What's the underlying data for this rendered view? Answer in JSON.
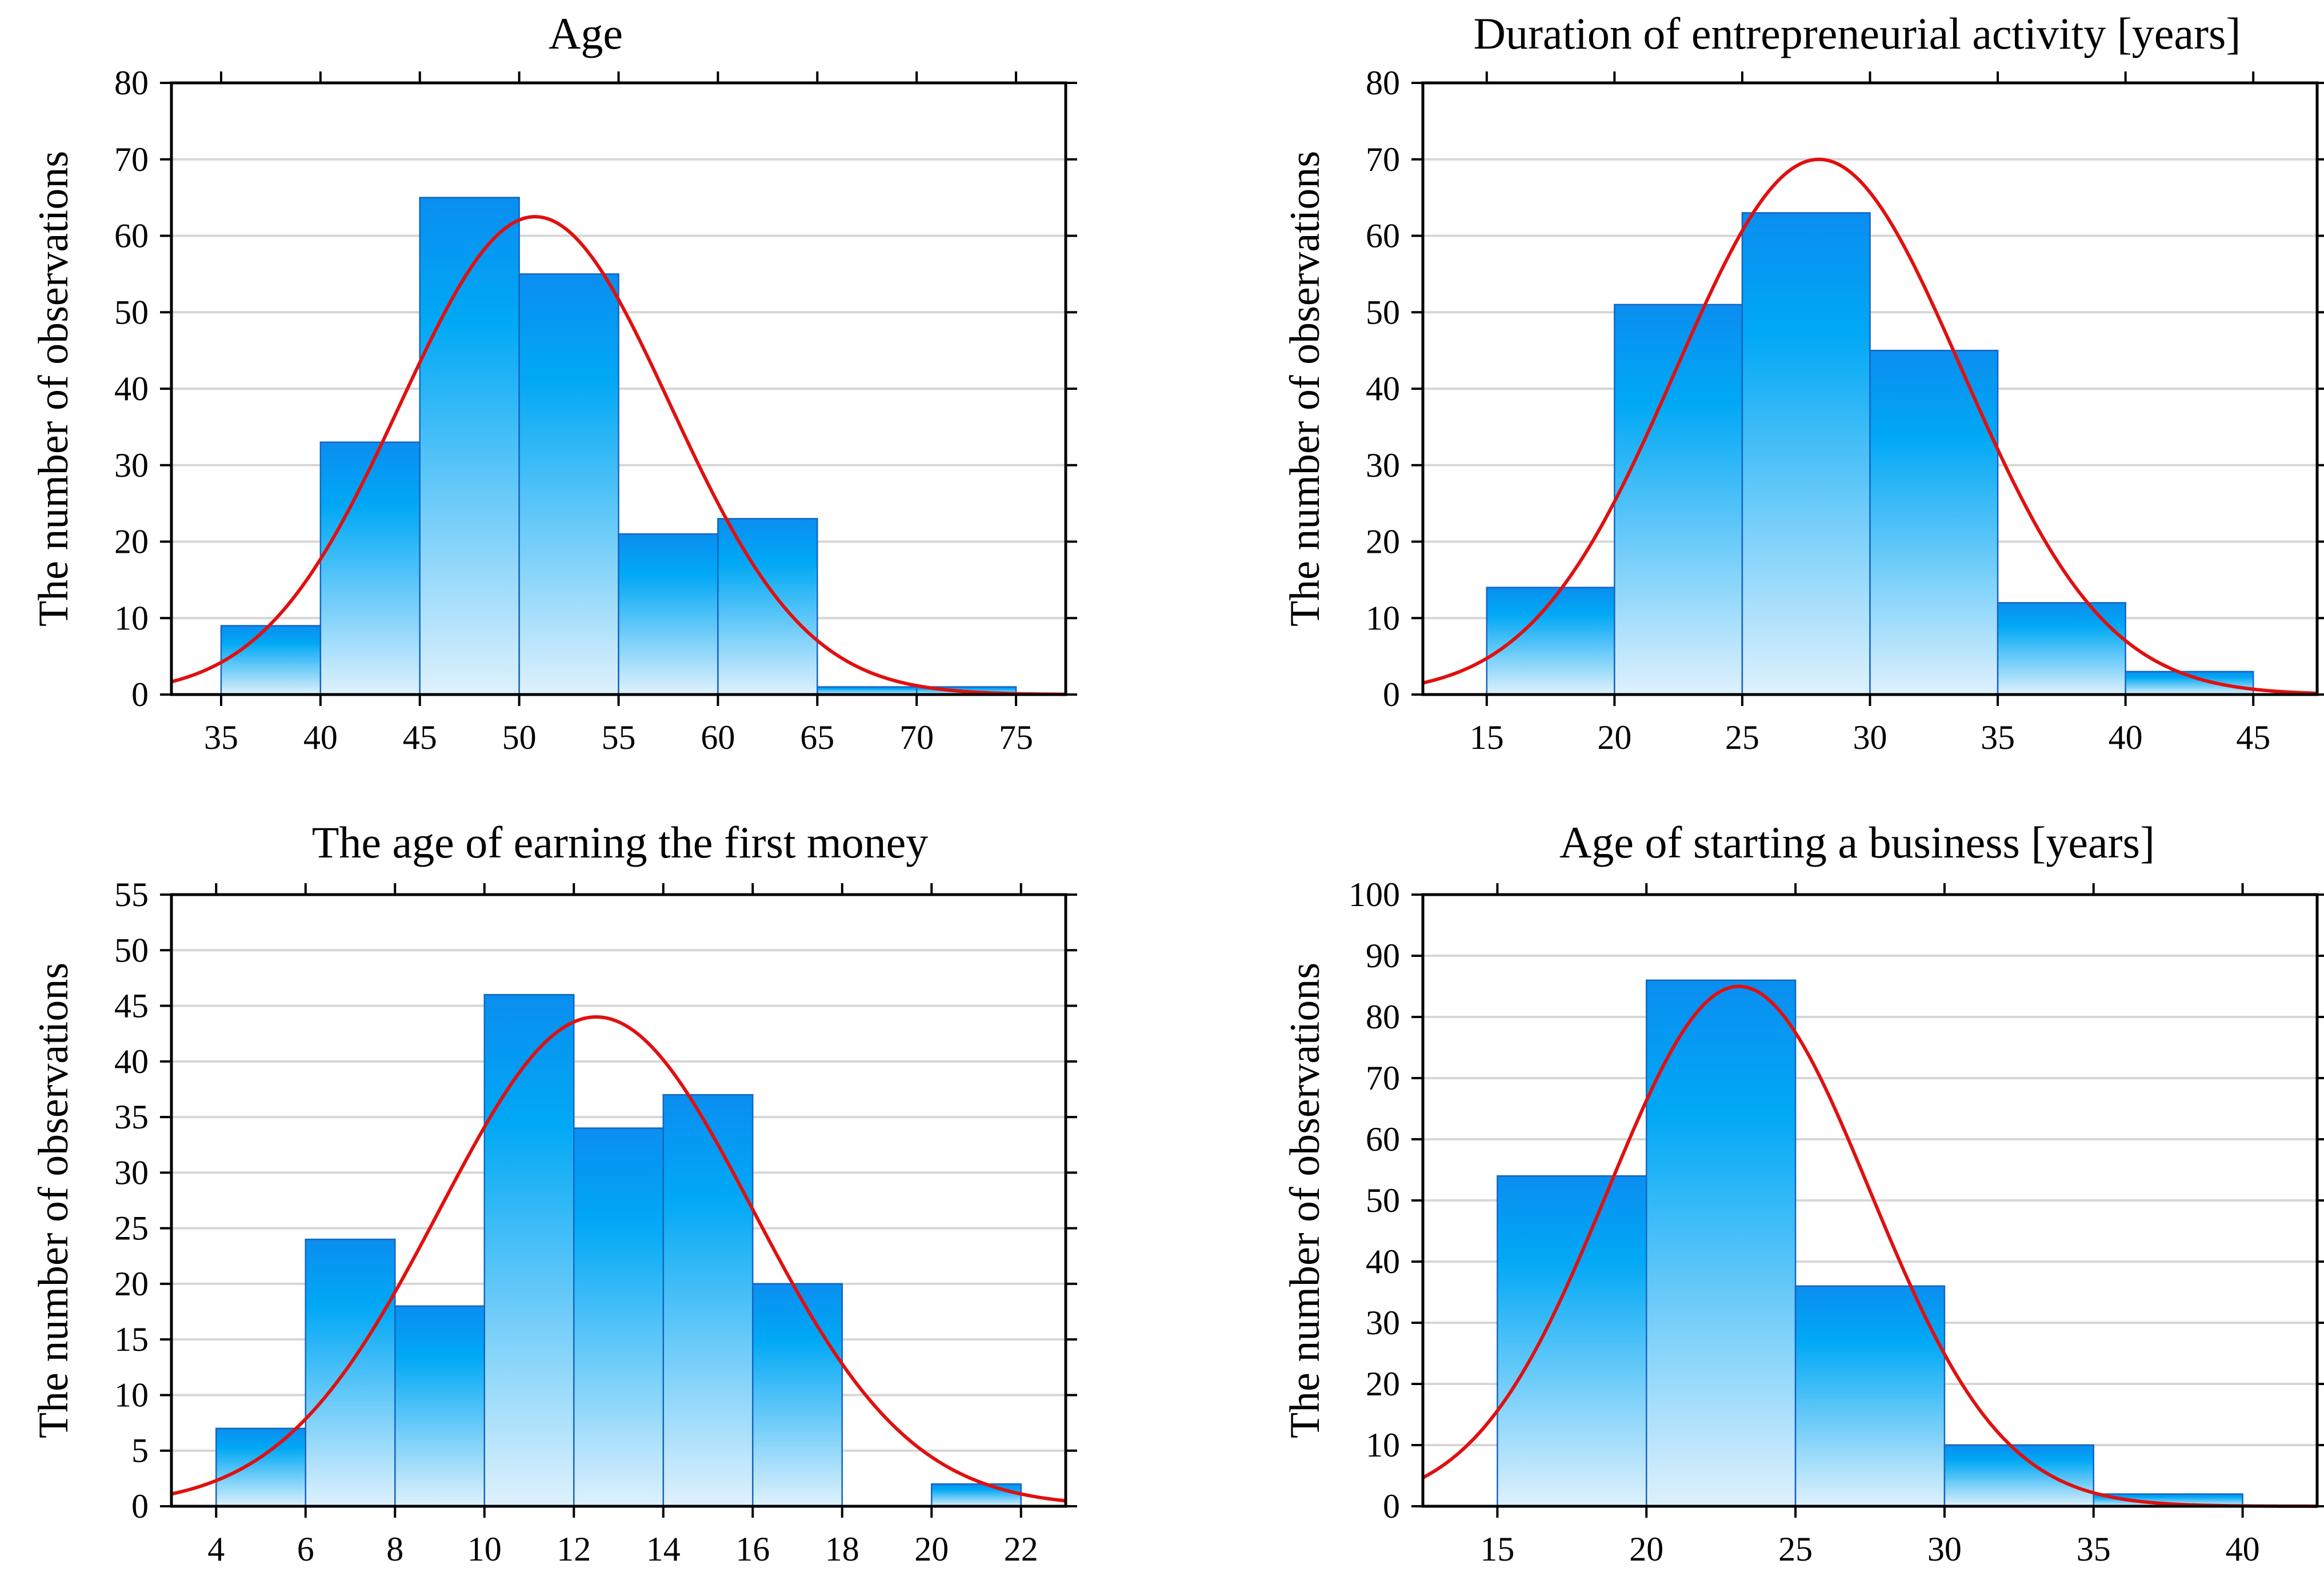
{
  "colors": {
    "bar_top": "#0a8ef0",
    "bar_mid": "#00a8f5",
    "bar_bottom": "#dff1fd",
    "bar_edge": "#1565c0",
    "curve": "#e01010",
    "grid": "#d6d6d6",
    "axis": "#000000"
  },
  "chart_data": [
    {
      "type": "bar",
      "title": "Age",
      "xlabel": "",
      "ylabel": "The number of observations",
      "xlim": [
        32.5,
        77.5
      ],
      "ylim": [
        0,
        80
      ],
      "xticks": [
        35,
        40,
        45,
        50,
        55,
        60,
        65,
        70,
        75
      ],
      "yticks": [
        0,
        10,
        20,
        30,
        40,
        50,
        60,
        70,
        80
      ],
      "grid": true,
      "bin_edges": [
        35,
        40,
        45,
        50,
        55,
        60,
        65,
        70,
        75
      ],
      "values": [
        9,
        33,
        65,
        55,
        21,
        23,
        1,
        1
      ],
      "fit": {
        "name": "normal",
        "peak": 62.5,
        "mean": 50.8,
        "sd": 6.8
      }
    },
    {
      "type": "bar",
      "title": "Duration of entrepreneurial activity [years]",
      "xlabel": "",
      "ylabel": "The number of observations",
      "xlim": [
        12.5,
        47.5
      ],
      "ylim": [
        0,
        80
      ],
      "xticks": [
        15,
        20,
        25,
        30,
        35,
        40,
        45
      ],
      "yticks": [
        0,
        10,
        20,
        30,
        40,
        50,
        60,
        70,
        80
      ],
      "grid": true,
      "bin_edges": [
        15,
        20,
        25,
        30,
        35,
        40,
        45
      ],
      "values": [
        14,
        51,
        63,
        45,
        12,
        3
      ],
      "fit": {
        "name": "normal",
        "peak": 70,
        "mean": 28,
        "sd": 5.6
      }
    },
    {
      "type": "bar",
      "title": "The age of earning the first money",
      "xlabel": "",
      "ylabel": "The number of observations",
      "xlim": [
        3,
        23
      ],
      "ylim": [
        0,
        55
      ],
      "xticks": [
        4,
        6,
        8,
        10,
        12,
        14,
        16,
        18,
        20,
        22
      ],
      "yticks": [
        0,
        5,
        10,
        15,
        20,
        25,
        30,
        35,
        40,
        45,
        50,
        55
      ],
      "grid": true,
      "bin_edges": [
        4,
        6,
        8,
        10,
        12,
        14,
        16,
        18,
        20,
        22
      ],
      "values": [
        7,
        24,
        18,
        46,
        34,
        37,
        20,
        0,
        2
      ],
      "fit": {
        "name": "normal",
        "peak": 44,
        "mean": 12.5,
        "sd": 3.5
      }
    },
    {
      "type": "bar",
      "title": "Age of starting a business [years]",
      "xlabel": "",
      "ylabel": "The number of observations",
      "xlim": [
        12.5,
        42.5
      ],
      "ylim": [
        0,
        100
      ],
      "xticks": [
        15,
        20,
        25,
        30,
        35,
        40
      ],
      "yticks": [
        0,
        10,
        20,
        30,
        40,
        50,
        60,
        70,
        80,
        90,
        100
      ],
      "grid": true,
      "bin_edges": [
        15,
        20,
        25,
        30,
        35,
        40
      ],
      "values": [
        54,
        86,
        36,
        10,
        2
      ],
      "fit": {
        "name": "normal",
        "peak": 85,
        "mean": 23.1,
        "sd": 4.4
      }
    }
  ]
}
